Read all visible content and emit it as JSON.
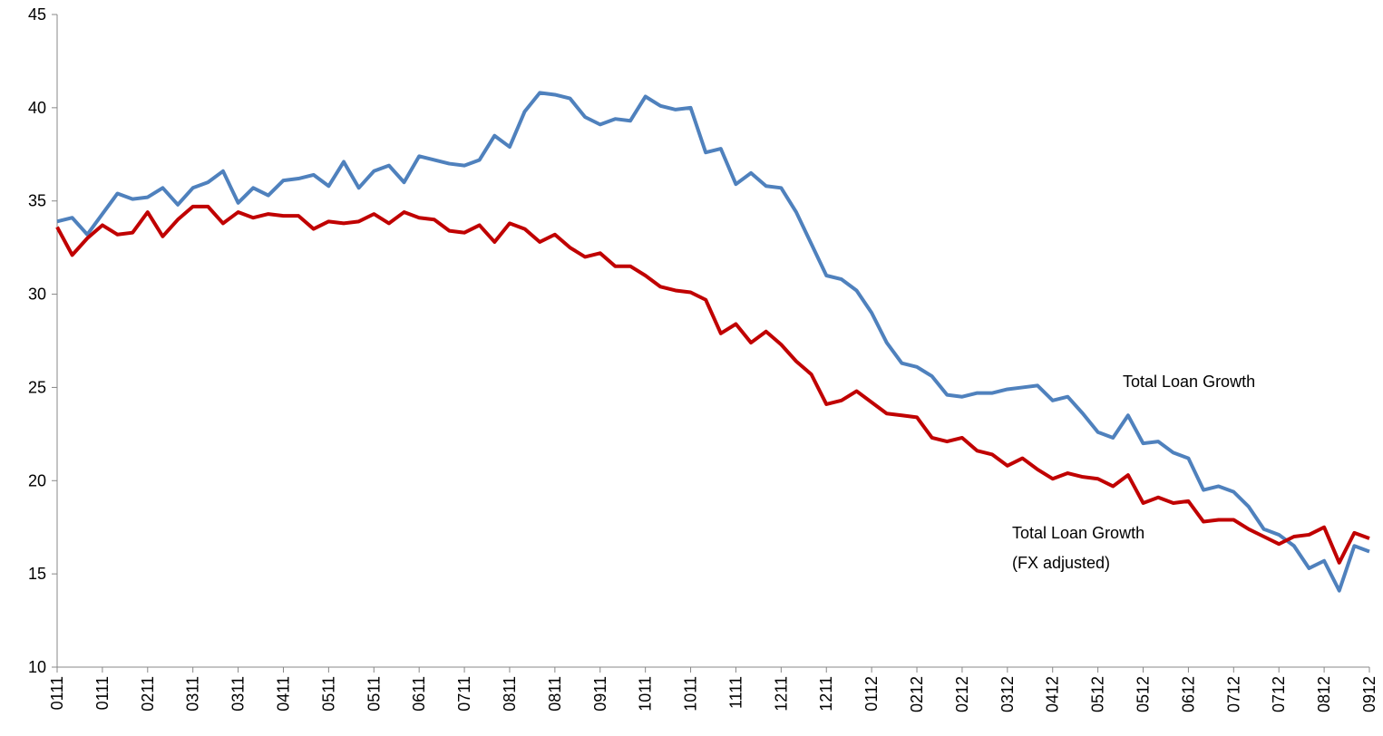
{
  "chart_data": {
    "type": "line",
    "categories": [
      "0111",
      null,
      null,
      "0111",
      null,
      null,
      "0211",
      null,
      null,
      "0311",
      null,
      null,
      "0311",
      null,
      null,
      "0411",
      null,
      null,
      "0511",
      null,
      null,
      "0511",
      null,
      null,
      "0611",
      null,
      null,
      "0711",
      null,
      null,
      "0811",
      null,
      null,
      "0811",
      null,
      null,
      "0911",
      null,
      null,
      "1011",
      null,
      null,
      "1011",
      null,
      null,
      "1111",
      null,
      null,
      "1211",
      null,
      null,
      "1211",
      null,
      null,
      "0112",
      null,
      null,
      "0212",
      null,
      null,
      "0212",
      null,
      null,
      "0312",
      null,
      null,
      "0412",
      null,
      null,
      "0512",
      null,
      null,
      "0512",
      null,
      null,
      "0612",
      null,
      null,
      "0712",
      null,
      null,
      "0712",
      null,
      null,
      "0812",
      null,
      null,
      "0912"
    ],
    "series": [
      {
        "color": "#4f81bd",
        "values": [
          33.9,
          34.1,
          33.2,
          34.3,
          35.4,
          35.1,
          35.2,
          35.7,
          34.8,
          35.7,
          36.0,
          36.6,
          34.9,
          35.7,
          35.3,
          36.1,
          36.2,
          36.4,
          35.8,
          37.1,
          35.7,
          36.6,
          36.9,
          36.0,
          37.4,
          37.2,
          37.0,
          36.9,
          37.2,
          38.5,
          37.9,
          39.8,
          40.8,
          40.7,
          40.5,
          39.5,
          39.1,
          39.4,
          39.3,
          40.6,
          40.1,
          39.9,
          40.0,
          37.6,
          37.8,
          35.9,
          36.5,
          35.8,
          35.7,
          34.4,
          32.7,
          31.0,
          30.8,
          30.2,
          29.0,
          27.4,
          26.3,
          26.1,
          25.6,
          24.6,
          24.5,
          24.7,
          24.7,
          24.9,
          25.0,
          25.1,
          24.3,
          24.5,
          23.6,
          22.6,
          22.3,
          23.5,
          22.0,
          22.1,
          21.5,
          21.2,
          19.5,
          19.7,
          19.4,
          18.6,
          17.4,
          17.1,
          16.5,
          15.3,
          15.7,
          14.1,
          16.5,
          16.2
        ]
      },
      {
        "color": "#c00000",
        "values": [
          33.6,
          32.1,
          33.0,
          33.7,
          33.2,
          33.3,
          34.4,
          33.1,
          34.0,
          34.7,
          34.7,
          33.8,
          34.4,
          34.1,
          34.3,
          34.2,
          34.2,
          33.5,
          33.9,
          33.8,
          33.9,
          34.3,
          33.8,
          34.4,
          34.1,
          34.0,
          33.4,
          33.3,
          33.7,
          32.8,
          33.8,
          33.5,
          32.8,
          33.2,
          32.5,
          32.0,
          32.2,
          31.5,
          31.5,
          31.0,
          30.4,
          30.2,
          30.1,
          29.7,
          27.9,
          28.4,
          27.4,
          28.0,
          27.3,
          26.4,
          25.7,
          24.1,
          24.3,
          24.8,
          24.2,
          23.6,
          23.5,
          23.4,
          22.3,
          22.1,
          22.3,
          21.6,
          21.4,
          20.8,
          21.2,
          20.6,
          20.1,
          20.4,
          20.2,
          20.1,
          19.7,
          20.3,
          18.8,
          19.1,
          18.8,
          18.9,
          17.8,
          17.9,
          17.9,
          17.4,
          17.0,
          16.6,
          17.0,
          17.1,
          17.5,
          15.6,
          17.2,
          16.9
        ]
      }
    ],
    "annotations": [
      {
        "color": "#4f81bd",
        "lines": [
          "Total Loan Growth"
        ]
      },
      {
        "color": "#c00000",
        "lines": [
          "Total Loan Growth",
          "(FX adjusted)"
        ]
      }
    ],
    "ylim": [
      10,
      45
    ],
    "yticks": [
      10,
      15,
      20,
      25,
      30,
      35,
      40,
      45
    ],
    "grid": false
  }
}
